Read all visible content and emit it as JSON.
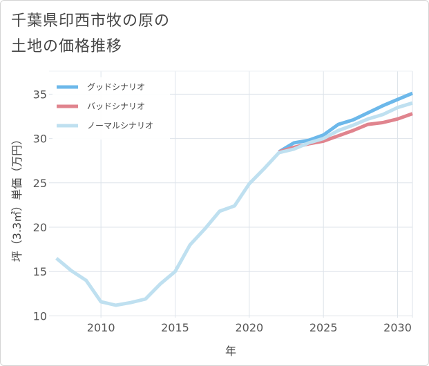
{
  "title_lines": [
    "千葉県印西市牧の原の",
    "土地の価格推移"
  ],
  "chart_data": {
    "type": "line",
    "xlabel": "年",
    "ylabel": "坪（3.3㎡）単価（万円）",
    "xlim": [
      2006.5,
      2031
    ],
    "ylim": [
      9.8,
      37.6
    ],
    "xticks": [
      2010,
      2015,
      2020,
      2025,
      2030
    ],
    "yticks": [
      10,
      15,
      20,
      25,
      30,
      35
    ],
    "grid": true,
    "legend_position": "top-left",
    "series": [
      {
        "name": "グッドシナリオ",
        "color": "#6cb8ea",
        "x": [
          2022,
          2023,
          2024,
          2025,
          2026,
          2027,
          2028,
          2029,
          2030,
          2031
        ],
        "y": [
          28.5,
          29.5,
          29.8,
          30.4,
          31.6,
          32.1,
          32.9,
          33.7,
          34.4,
          35.1
        ]
      },
      {
        "name": "バッドシナリオ",
        "color": "#e0848e",
        "x": [
          2022,
          2023,
          2024,
          2025,
          2026,
          2027,
          2028,
          2029,
          2030,
          2031
        ],
        "y": [
          28.5,
          29.0,
          29.4,
          29.7,
          30.3,
          30.9,
          31.6,
          31.8,
          32.2,
          32.8
        ]
      },
      {
        "name": "ノーマルシナリオ",
        "color": "#bfe0f0",
        "x": [
          2007,
          2008,
          2009,
          2010,
          2011,
          2012,
          2013,
          2014,
          2015,
          2016,
          2017,
          2018,
          2019,
          2020,
          2021,
          2022,
          2023,
          2024,
          2025,
          2026,
          2027,
          2028,
          2029,
          2030,
          2031
        ],
        "y": [
          16.5,
          15.1,
          14.0,
          11.6,
          11.2,
          11.5,
          11.9,
          13.6,
          15.0,
          18.0,
          19.8,
          21.8,
          22.4,
          24.9,
          26.6,
          28.4,
          28.8,
          29.5,
          30.0,
          30.9,
          31.5,
          32.2,
          32.7,
          33.5,
          34.0
        ]
      }
    ]
  }
}
